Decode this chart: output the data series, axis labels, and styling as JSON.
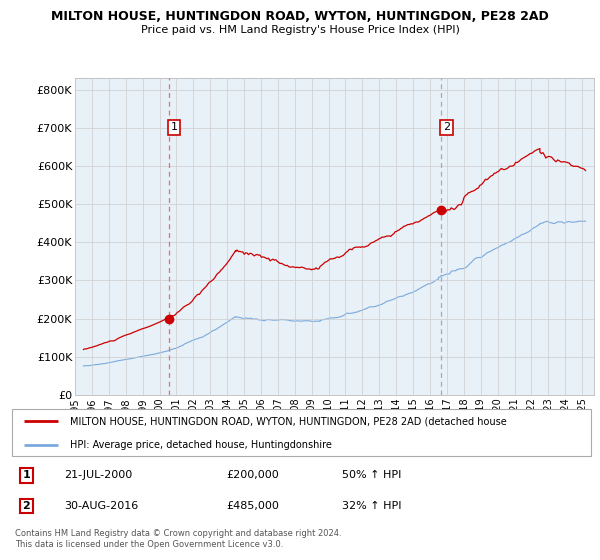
{
  "title": "MILTON HOUSE, HUNTINGDON ROAD, WYTON, HUNTINGDON, PE28 2AD",
  "subtitle": "Price paid vs. HM Land Registry's House Price Index (HPI)",
  "ylim": [
    0,
    830000
  ],
  "yticks": [
    0,
    100000,
    200000,
    300000,
    400000,
    500000,
    600000,
    700000,
    800000
  ],
  "ytick_labels": [
    "£0",
    "£100K",
    "£200K",
    "£300K",
    "£400K",
    "£500K",
    "£600K",
    "£700K",
    "£800K"
  ],
  "xlim_start": 1995.3,
  "xlim_end": 2025.7,
  "xticks": [
    1995,
    1996,
    1997,
    1998,
    1999,
    2000,
    2001,
    2002,
    2003,
    2004,
    2005,
    2006,
    2007,
    2008,
    2009,
    2010,
    2011,
    2012,
    2013,
    2014,
    2015,
    2016,
    2017,
    2018,
    2019,
    2020,
    2021,
    2022,
    2023,
    2024,
    2025
  ],
  "red_line_color": "#cc0000",
  "blue_line_color": "#7aaadd",
  "dashed_line_color1": "#ff6666",
  "dashed_line_color2": "#aaaaaa",
  "chart_bg_color": "#e8f0f8",
  "marker1_x": 2000.55,
  "marker1_y": 200000,
  "marker2_x": 2016.66,
  "marker2_y": 485000,
  "legend_label_red": "MILTON HOUSE, HUNTINGDON ROAD, WYTON, HUNTINGDON, PE28 2AD (detached house",
  "legend_label_blue": "HPI: Average price, detached house, Huntingdonshire",
  "annotation1_label": "1",
  "annotation1_date": "21-JUL-2000",
  "annotation1_price": "£200,000",
  "annotation1_hpi": "50% ↑ HPI",
  "annotation2_label": "2",
  "annotation2_date": "30-AUG-2016",
  "annotation2_price": "£485,000",
  "annotation2_hpi": "32% ↑ HPI",
  "footer": "Contains HM Land Registry data © Crown copyright and database right 2024.\nThis data is licensed under the Open Government Licence v3.0.",
  "background_color": "#ffffff",
  "grid_color": "#cccccc"
}
